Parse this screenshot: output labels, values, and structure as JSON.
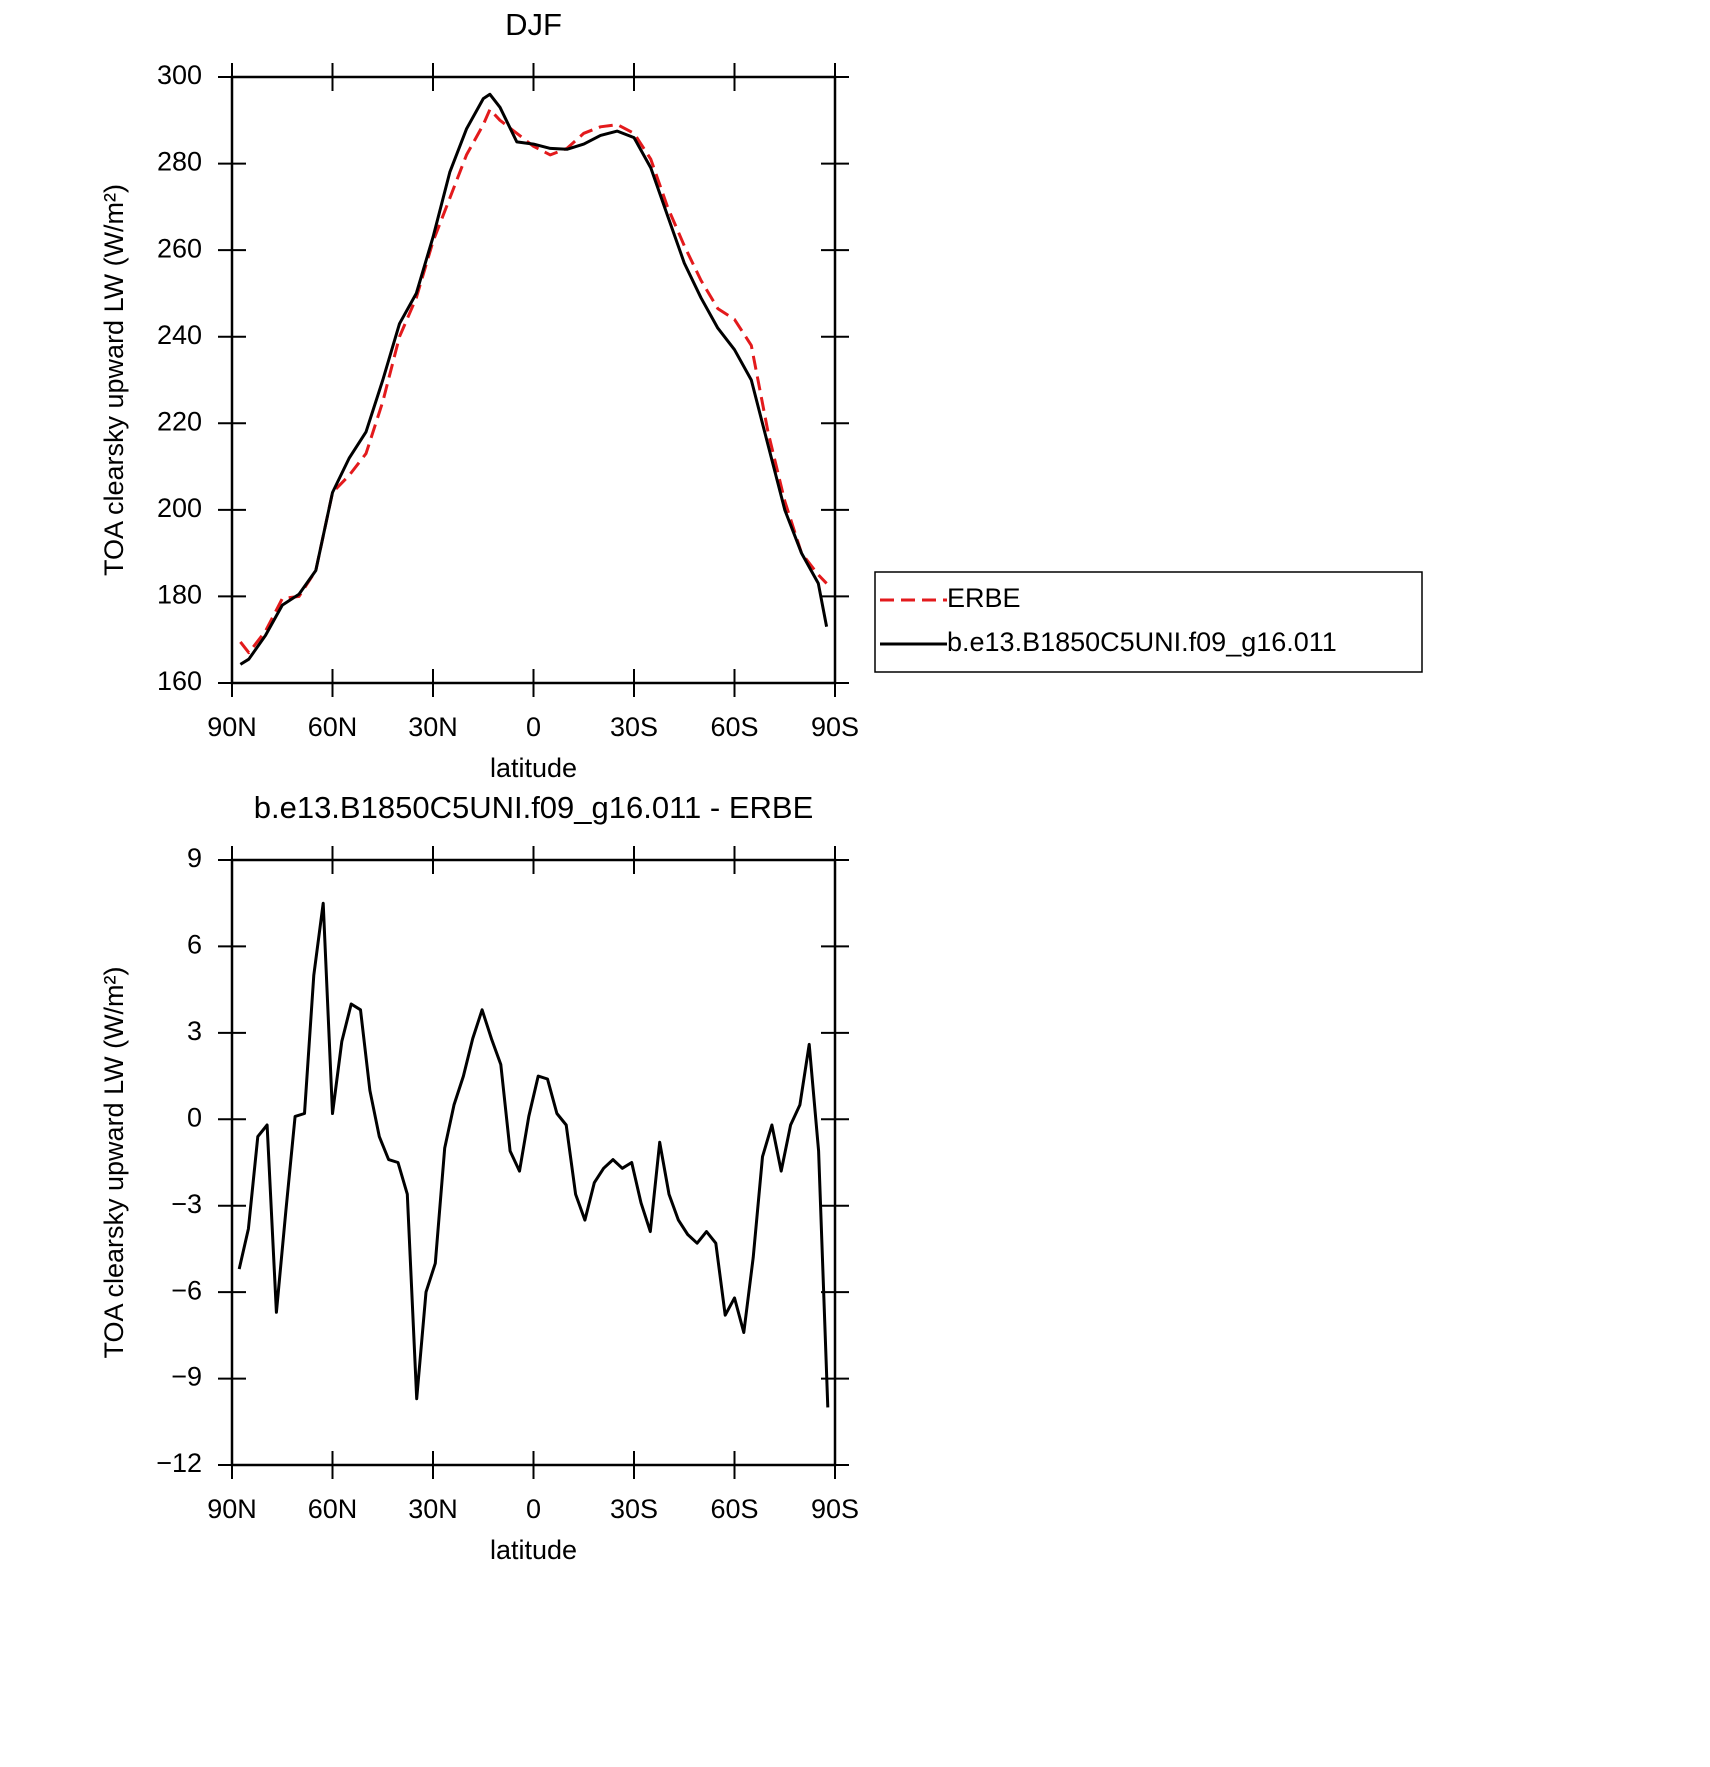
{
  "chart_data": [
    {
      "type": "line",
      "title": "DJF",
      "xlabel": "latitude",
      "ylabel": "TOA clearsky upward LW (W/m²)",
      "x": [
        87.5,
        85,
        80,
        75,
        70,
        65,
        60,
        55,
        50,
        45,
        40,
        35,
        30,
        25,
        20,
        15,
        13,
        10,
        5,
        0,
        -5,
        -10,
        -15,
        -20,
        -25,
        -30,
        -35,
        -40,
        -45,
        -50,
        -55,
        -60,
        -65,
        -70,
        -75,
        -80,
        -85,
        -87.5
      ],
      "series": [
        {
          "name": "ERBE",
          "color": "#e31a1c",
          "dash": true,
          "values": [
            169.5,
            167,
            172,
            179.5,
            180,
            186,
            204,
            208,
            213,
            225,
            240,
            249,
            262,
            272,
            282,
            289,
            292.5,
            290,
            287,
            284,
            282,
            283.5,
            287,
            288.5,
            289,
            287,
            281,
            270,
            261,
            253,
            246.5,
            244,
            238,
            218,
            202,
            190,
            185,
            183
          ]
        },
        {
          "name": "b.e13.B1850C5UNI.f09_g16.011",
          "color": "#000000",
          "dash": false,
          "values": [
            164.3,
            165.5,
            171,
            178,
            180.5,
            186,
            204,
            212,
            218,
            230,
            243,
            250,
            263,
            278,
            288,
            295,
            296,
            293,
            285,
            284.5,
            283.5,
            283.3,
            284.5,
            286.5,
            287.5,
            286,
            279,
            268,
            257,
            249,
            242,
            237,
            230,
            215,
            200,
            190,
            183,
            173
          ]
        }
      ],
      "xlim": [
        90,
        -90
      ],
      "xticks": [
        {
          "value": 90,
          "label": "90N"
        },
        {
          "value": 60,
          "label": "60N"
        },
        {
          "value": 30,
          "label": "30N"
        },
        0,
        {
          "value": -30,
          "label": "30S"
        },
        {
          "value": -60,
          "label": "60S"
        },
        {
          "value": -90,
          "label": "90S"
        }
      ],
      "ylim": [
        160,
        300
      ],
      "yticks": [
        160,
        180,
        200,
        220,
        240,
        260,
        280,
        300
      ],
      "legend": "outside-right"
    },
    {
      "type": "line",
      "title": "b.e13.B1850C5UNI.f09_g16.011 - ERBE",
      "xlabel": "latitude",
      "ylabel": "TOA clearsky upward LW (W/m²)",
      "x": [
        87.86,
        85.1,
        82.31,
        79.53,
        76.74,
        73.95,
        71.16,
        68.37,
        65.58,
        62.79,
        60.0,
        57.21,
        54.42,
        51.63,
        48.84,
        46.04,
        43.25,
        40.46,
        37.67,
        34.88,
        32.09,
        29.3,
        26.51,
        23.72,
        20.93,
        18.14,
        15.35,
        12.56,
        9.77,
        6.98,
        4.19,
        1.4,
        -1.4,
        -4.19,
        -6.98,
        -9.77,
        -12.56,
        -15.35,
        -18.14,
        -20.93,
        -23.72,
        -26.51,
        -29.3,
        -32.09,
        -34.88,
        -37.67,
        -40.46,
        -43.25,
        -46.04,
        -48.84,
        -51.63,
        -54.42,
        -57.21,
        -60.0,
        -62.79,
        -65.58,
        -68.37,
        -71.16,
        -73.95,
        -76.74,
        -79.53,
        -82.31,
        -85.1,
        -87.86
      ],
      "values": [
        -5.2,
        -3.8,
        -0.6,
        -0.2,
        -6.7,
        -3.2,
        0.1,
        0.2,
        5,
        7.5,
        0.2,
        2.7,
        4,
        3.8,
        1,
        -0.6,
        -1.4,
        -1.5,
        -2.6,
        -9.7,
        -6,
        -5,
        -1,
        0.5,
        1.5,
        2.8,
        3.8,
        2.8,
        1.9,
        -1.1,
        -1.8,
        0.1,
        1.5,
        1.4,
        0.2,
        -0.2,
        -2.6,
        -3.5,
        -2.2,
        -1.7,
        -1.4,
        -1.7,
        -1.5,
        -2.9,
        -3.9,
        -0.8,
        -2.6,
        -3.5,
        -4,
        -4.3,
        -3.9,
        -4.3,
        -6.8,
        -6.2,
        -7.4,
        -4.8,
        -1.3,
        -0.2,
        -1.8,
        -0.2,
        0.5,
        2.6,
        -1.1,
        -10
      ],
      "color": "#000000",
      "xlim": [
        90,
        -90
      ],
      "xticks": [
        {
          "value": 90,
          "label": "90N"
        },
        {
          "value": 60,
          "label": "60N"
        },
        {
          "value": 30,
          "label": "30N"
        },
        0,
        {
          "value": -30,
          "label": "30S"
        },
        {
          "value": -60,
          "label": "60S"
        },
        {
          "value": -90,
          "label": "90S"
        }
      ],
      "ylim": [
        -12,
        9
      ],
      "yticks": [
        {
          "value": -12,
          "label": "−12"
        },
        {
          "value": -9,
          "label": "−9"
        },
        {
          "value": -6,
          "label": "−6"
        },
        {
          "value": -3,
          "label": "−3"
        },
        0,
        3,
        6,
        9
      ]
    }
  ]
}
